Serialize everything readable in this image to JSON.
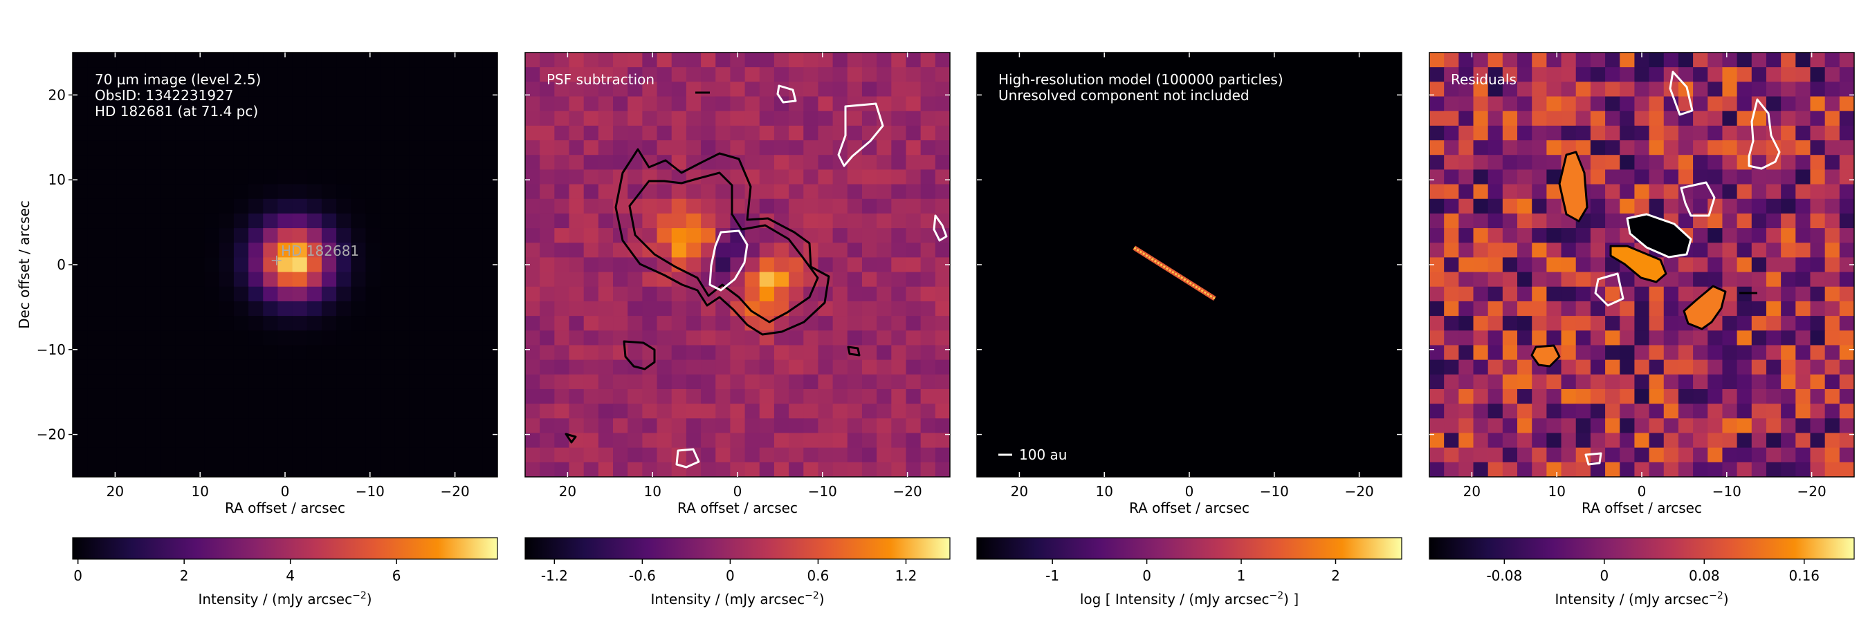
{
  "figure": {
    "panels": [
      {
        "annotation_lines": [
          "70 µm image (level 2.5)",
          "ObsID: 1342231927",
          "HD 182681 (at 71.4 pc)"
        ],
        "source_label": "HD 182681",
        "xlabel": "RA offset / arcsec",
        "ylabel": "Dec offset / arcsec",
        "colorbar_label": "Intensity / (mJy arcsec",
        "colorbar_label_sup": "−2",
        "colorbar_label_end": ")",
        "colorbar_ticks": [
          "0",
          "2",
          "4",
          "6"
        ]
      },
      {
        "annotation_lines": [
          "PSF subtraction"
        ],
        "xlabel": "RA offset / arcsec",
        "colorbar_label": "Intensity / (mJy arcsec",
        "colorbar_label_sup": "−2",
        "colorbar_label_end": ")",
        "colorbar_ticks": [
          "-1.2",
          "-0.6",
          "0",
          "0.6",
          "1.2"
        ]
      },
      {
        "annotation_lines": [
          "High-resolution model (100000 particles)",
          "Unresolved component not included"
        ],
        "scalebar_label": "100 au",
        "xlabel": "RA offset / arcsec",
        "colorbar_label": "log [ Intensity / (mJy arcsec",
        "colorbar_label_sup": "−2",
        "colorbar_label_end": ") ]",
        "colorbar_ticks": [
          "-1",
          "0",
          "1",
          "2"
        ]
      },
      {
        "annotation_lines": [
          "Residuals"
        ],
        "xlabel": "RA offset / arcsec",
        "colorbar_label": "Intensity / (mJy arcsec",
        "colorbar_label_sup": "−2",
        "colorbar_label_end": ")",
        "colorbar_ticks": [
          "-0.08",
          "0",
          "0.08",
          "0.16"
        ]
      }
    ],
    "colormap": "inferno"
  },
  "chart_data": [
    {
      "type": "heatmap",
      "xlim": [
        25,
        -25
      ],
      "ylim": [
        -25,
        25
      ],
      "xticks": [
        20,
        10,
        0,
        -10,
        -20
      ],
      "yticks": [
        20,
        10,
        0,
        -10,
        -20
      ],
      "colorbar_range": [
        -0.1,
        7.9
      ],
      "colorbar_tick_values": [
        0,
        2,
        4,
        6
      ],
      "source": {
        "ra": 1,
        "dec": 0.5
      },
      "peak": {
        "ra": -1,
        "dec": 0.5,
        "value": 7.8
      },
      "contours": false
    },
    {
      "type": "heatmap",
      "xlim": [
        25,
        -25
      ],
      "ylim": [
        -25,
        25
      ],
      "xticks": [
        20,
        10,
        0,
        -10,
        -20
      ],
      "colorbar_range": [
        -1.4,
        1.5
      ],
      "colorbar_tick_values": [
        -1.2,
        -0.6,
        0,
        0.6,
        1.2
      ],
      "lobes": [
        {
          "ra": 5,
          "dec": 3,
          "value": 1.4
        },
        {
          "ra": -3,
          "dec": -2,
          "value": 1.4
        },
        {
          "ra": 1,
          "dec": 1,
          "value": -1.3
        }
      ],
      "contours": true
    },
    {
      "type": "heatmap",
      "xlim": [
        25,
        -25
      ],
      "ylim": [
        -25,
        25
      ],
      "xticks": [
        20,
        10,
        0,
        -10,
        -20
      ],
      "colorbar_range": [
        -1.8,
        2.7
      ],
      "colorbar_tick_values": [
        -1,
        0,
        1,
        2
      ],
      "disk": {
        "from": {
          "ra": 6.5,
          "dec": 2
        },
        "to": {
          "ra": -3,
          "dec": -4
        }
      },
      "contours": false
    },
    {
      "type": "heatmap",
      "xlim": [
        25,
        -25
      ],
      "ylim": [
        -25,
        25
      ],
      "xticks": [
        20,
        10,
        0,
        -10,
        -20
      ],
      "colorbar_range": [
        -0.14,
        0.2
      ],
      "colorbar_tick_values": [
        -0.08,
        0,
        0.08,
        0.16
      ],
      "contours": true
    }
  ]
}
